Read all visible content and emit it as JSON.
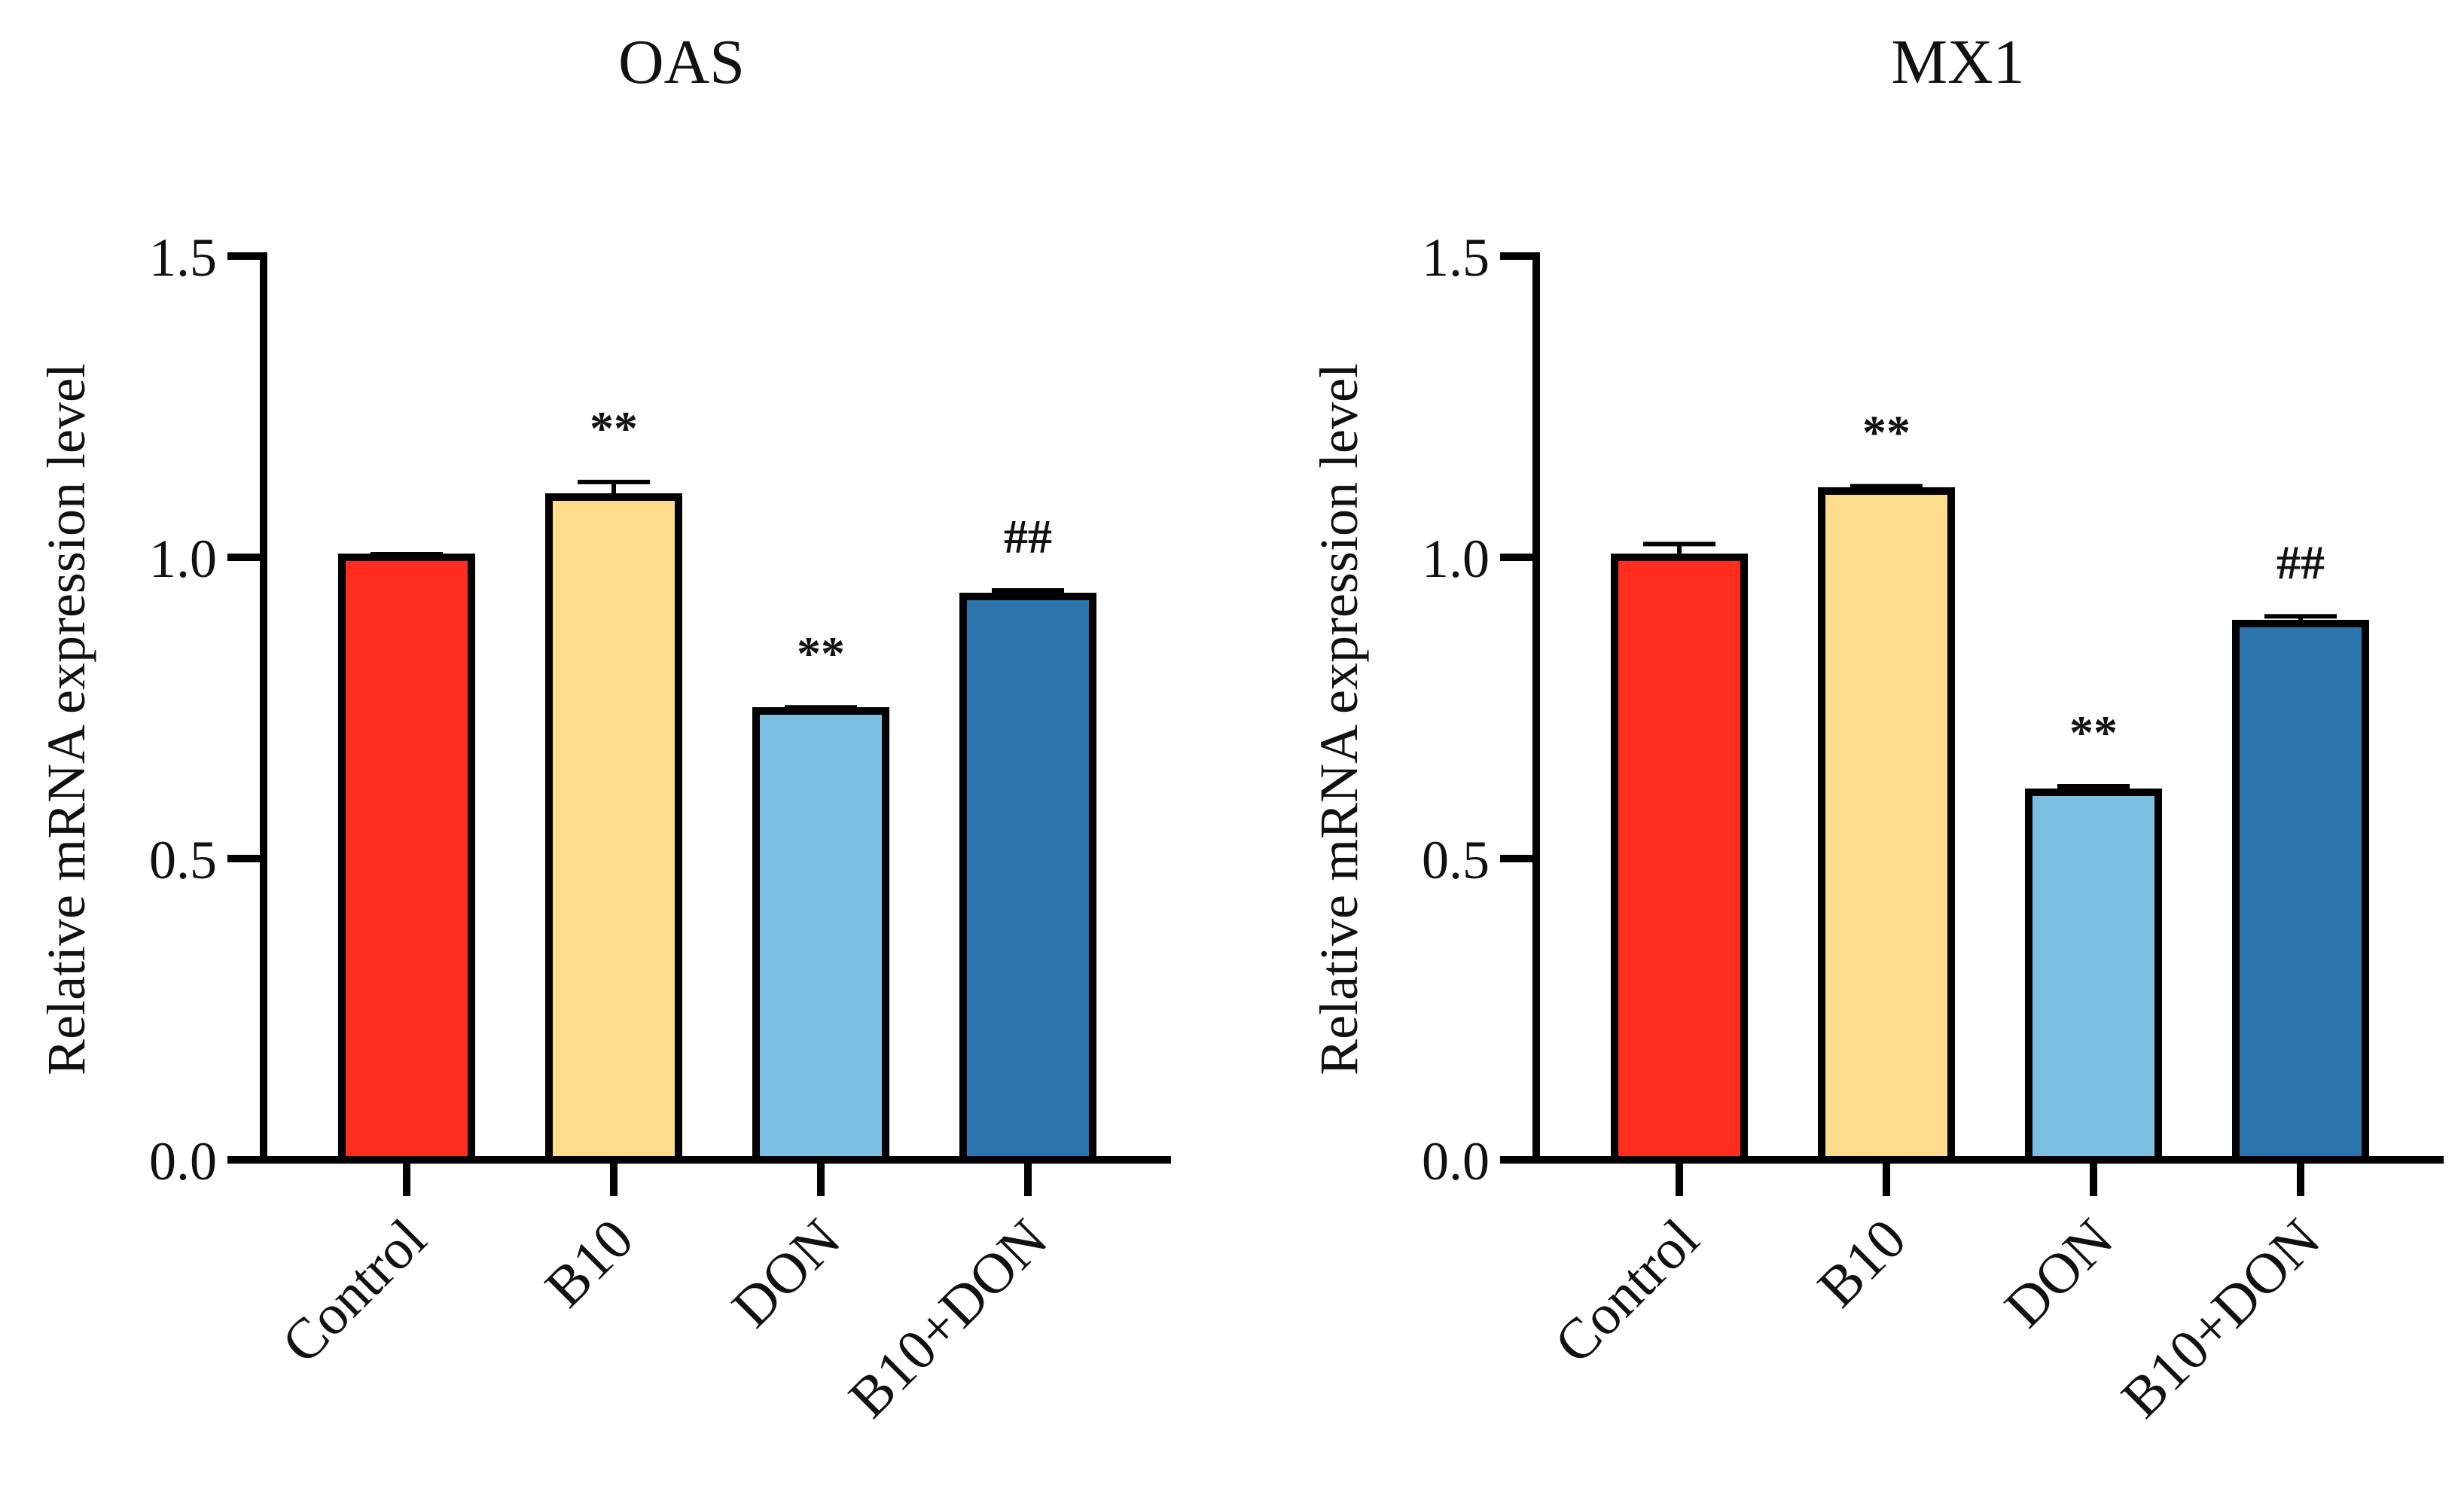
{
  "chart_data": [
    {
      "type": "bar",
      "title": "OAS",
      "xlabel": "",
      "ylabel": "Relative mRNA expression level",
      "ylim": [
        0,
        1.5
      ],
      "yticks": [
        0.0,
        0.5,
        1.0,
        1.5
      ],
      "ytick_labels": [
        "0.0",
        "0.5",
        "1.0",
        "1.5"
      ],
      "categories": [
        "Control",
        "B10",
        "DON",
        "B10+DON"
      ],
      "values": [
        1.0,
        1.1,
        0.745,
        0.935
      ],
      "errors": [
        0.005,
        0.025,
        0.006,
        0.01
      ],
      "colors": [
        "#FF2D1E",
        "#FDDC8C",
        "#7BBFE3",
        "#2B74AE"
      ],
      "annotations": [
        "",
        "**",
        "**",
        "##"
      ],
      "legend": "none",
      "grid": false
    },
    {
      "type": "bar",
      "title": "MX1",
      "xlabel": "",
      "ylabel": "Relative mRNA expression level",
      "ylim": [
        0,
        1.5
      ],
      "yticks": [
        0.0,
        0.5,
        1.0,
        1.5
      ],
      "ytick_labels": [
        "0.0",
        "0.5",
        "1.0",
        "1.5"
      ],
      "categories": [
        "Control",
        "B10",
        "DON",
        "B10+DON"
      ],
      "values": [
        1.0,
        1.11,
        0.61,
        0.89
      ],
      "errors": [
        0.022,
        0.008,
        0.01,
        0.012
      ],
      "colors": [
        "#FF2D1E",
        "#FDDC8C",
        "#7BBFE3",
        "#2B74AE"
      ],
      "annotations": [
        "",
        "**",
        "**",
        "##"
      ],
      "legend": "none",
      "grid": false
    }
  ]
}
